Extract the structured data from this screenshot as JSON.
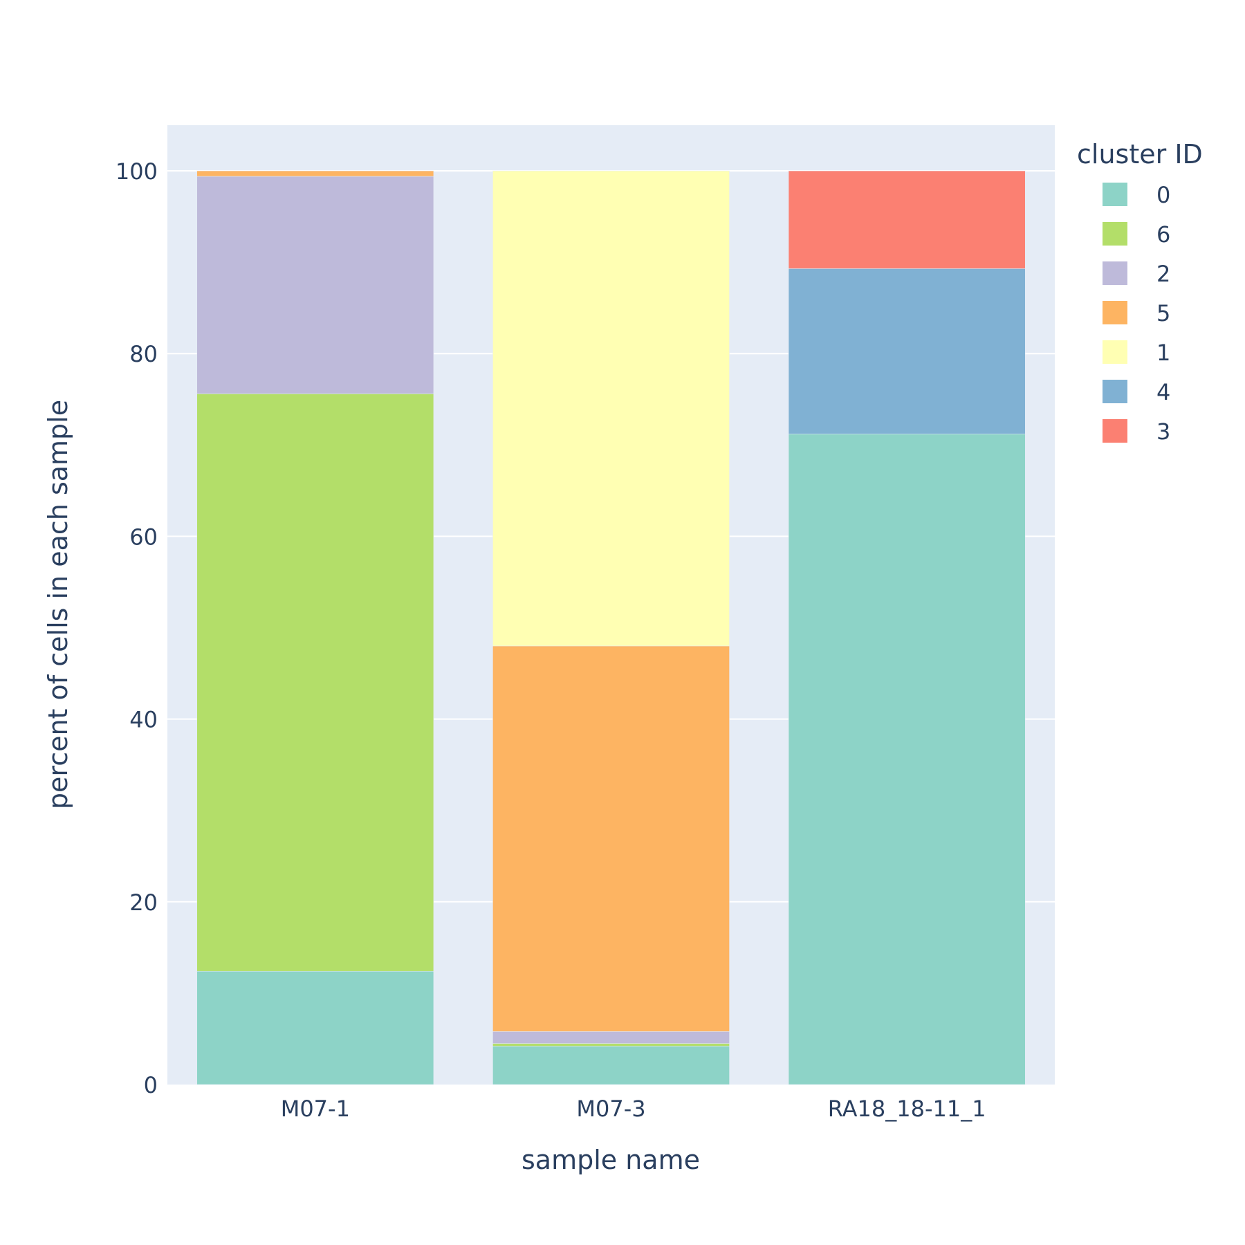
{
  "chart_data": {
    "type": "bar",
    "barmode": "stack",
    "categories": [
      "M07-1",
      "M07-3",
      "RA18_18-11_1"
    ],
    "xlabel": "sample name",
    "ylabel": "percent of cells in each sample",
    "ylim": [
      0,
      105
    ],
    "yticks": [
      0,
      20,
      40,
      60,
      80,
      100
    ],
    "grid": true,
    "legend": {
      "title": "cluster ID",
      "placement": "top-right"
    },
    "series": [
      {
        "name": "0",
        "color": "#8dd3c7",
        "values": [
          12.4,
          4.2,
          71.2
        ]
      },
      {
        "name": "6",
        "color": "#b3de69",
        "values": [
          63.2,
          0.3,
          0
        ]
      },
      {
        "name": "2",
        "color": "#bebada",
        "values": [
          23.8,
          1.3,
          0
        ]
      },
      {
        "name": "5",
        "color": "#fdb462",
        "values": [
          0.6,
          42.2,
          0
        ]
      },
      {
        "name": "1",
        "color": "#ffffb3",
        "values": [
          0,
          52.0,
          0
        ]
      },
      {
        "name": "4",
        "color": "#80b1d3",
        "values": [
          0,
          0,
          18.1
        ]
      },
      {
        "name": "3",
        "color": "#fb8072",
        "values": [
          0,
          0,
          10.7
        ]
      }
    ]
  }
}
